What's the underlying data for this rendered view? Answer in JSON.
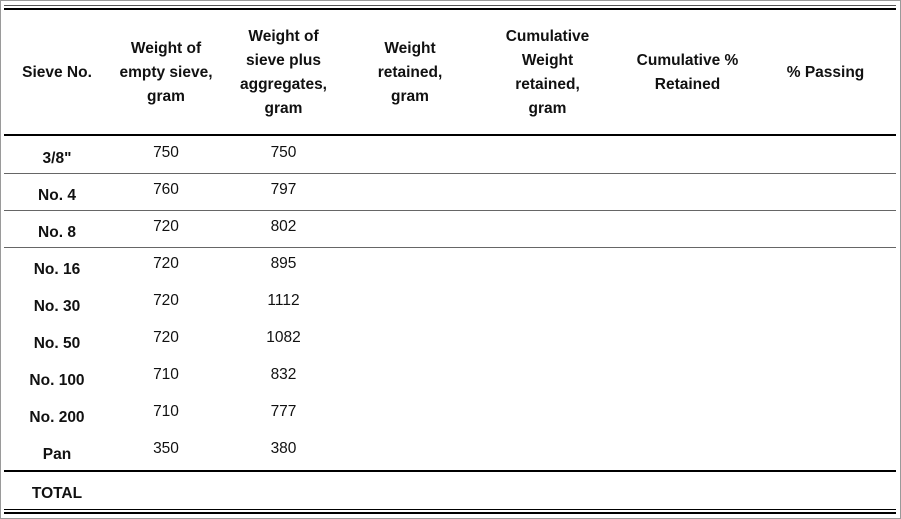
{
  "table": {
    "headers": [
      "Sieve No.",
      "Weight of empty sieve, gram",
      "Weight of sieve plus aggregates, gram",
      "Weight retained, gram",
      "Cumulative Weight retained, gram",
      "Cumulative % Retained",
      "% Passing"
    ],
    "rows": [
      [
        "3/8\"",
        750,
        750
      ],
      [
        "No. 4",
        760,
        797
      ],
      [
        "No. 8",
        720,
        802
      ],
      [
        "No. 16",
        720,
        895
      ],
      [
        "No. 30",
        720,
        1112
      ],
      [
        "No. 50",
        720,
        1082
      ],
      [
        "No. 100",
        710,
        832
      ],
      [
        "No. 200",
        710,
        777
      ],
      [
        "Pan",
        350,
        380
      ]
    ],
    "total_label": "TOTAL"
  }
}
